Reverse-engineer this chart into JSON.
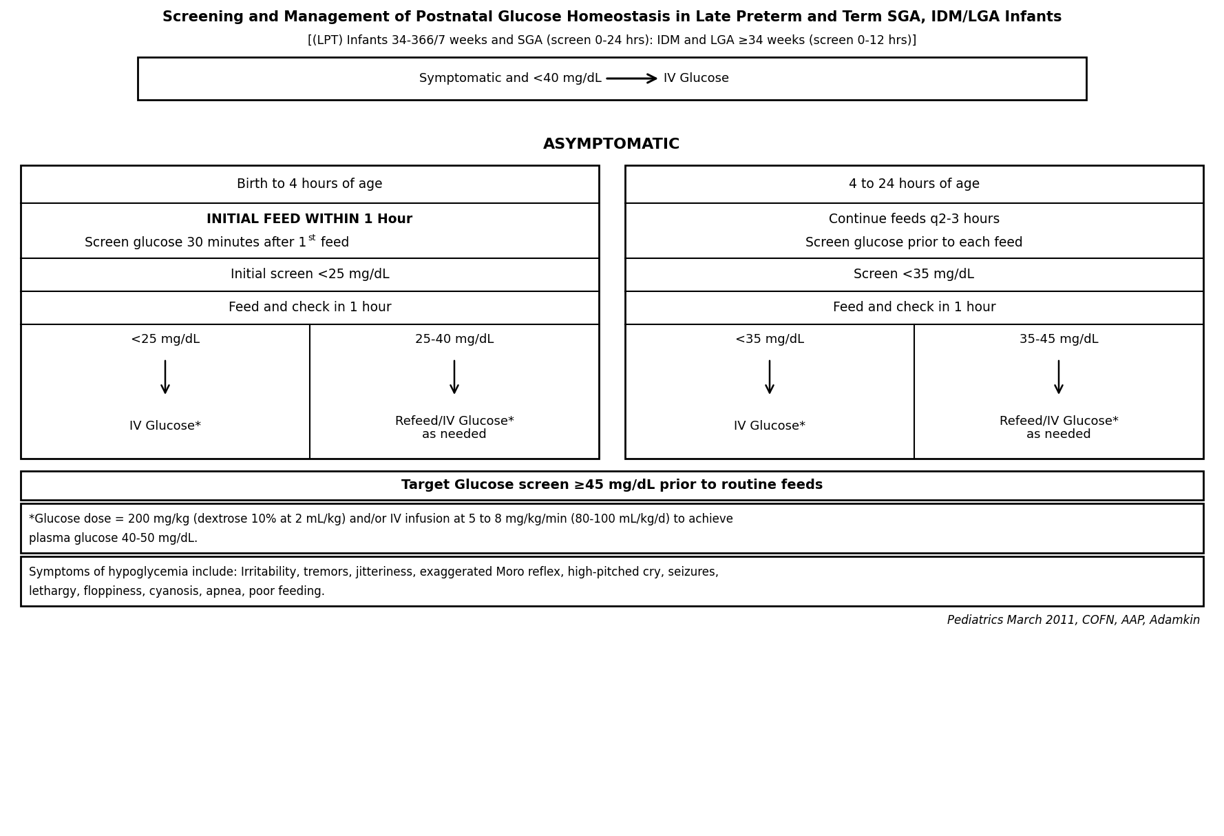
{
  "title": "Screening and Management of Postnatal Glucose Homeostasis in Late Preterm and Term SGA, IDM/LGA Infants",
  "subtitle": "[(LPT) Infants 34-36",
  "subtitle_sub": "6/7",
  "subtitle_rest": " weeks and SGA (screen 0-24 hrs): IDM and LGA ≥34 weeks (screen 0-12 hrs)]",
  "symptomatic_text": "Symptomatic and <40 mg/dL",
  "symptomatic_arrow_text": "IV Glucose",
  "asymptomatic_label": "ASYMPTOMATIC",
  "left_col_header": "Birth to 4 hours of age",
  "right_col_header": "4 to 24 hours of age",
  "left_row2_line1": "INITIAL FEED WITHIN 1 Hour",
  "left_row2_line2_pre": "Screen glucose 30 minutes after 1",
  "left_row2_line2_sup": "st",
  "left_row2_line2_post": " feed",
  "right_row2_line1": "Continue feeds q2-3 hours",
  "right_row2_line2": "Screen glucose prior to each feed",
  "left_row3": "Initial screen <25 mg/dL",
  "right_row3": "Screen <35 mg/dL",
  "left_row4": "Feed and check in 1 hour",
  "right_row4": "Feed and check in 1 hour",
  "left_subcol1_header": "<25 mg/dL",
  "left_subcol2_header": "25-40 mg/dL",
  "right_subcol1_header": "<35 mg/dL",
  "right_subcol2_header": "35-45 mg/dL",
  "left_subcol1_result": "IV Glucose*",
  "left_subcol2_result_line1": "Refeed/IV Glucose*",
  "left_subcol2_result_line2": "as needed",
  "right_subcol1_result": "IV Glucose*",
  "right_subcol2_result_line1": "Refeed/IV Glucose*",
  "right_subcol2_result_line2": "as needed",
  "target_text": "Target Glucose screen ≥45 mg/dL prior to routine feeds",
  "footnote_line1": "*Glucose dose = 200 mg/kg (dextrose 10% at 2 mL/kg) and/or IV infusion at 5 to 8 mg/kg/min (80-100 mL/kg/d) to achieve",
  "footnote_line2": "plasma glucose 40-50 mg/dL.",
  "symptoms_line1": "Symptoms of hypoglycemia include: Irritability, tremors, jitteriness, exaggerated Moro reflex, high-pitched cry, seizures,",
  "symptoms_line2": "lethargy, floppiness, cyanosis, apnea, poor feeding.",
  "citation": "Pediatrics March 2011, COFN, AAP, Adamkin",
  "bg_color": "#ffffff",
  "box_edge_color": "#000000",
  "text_color": "#000000"
}
